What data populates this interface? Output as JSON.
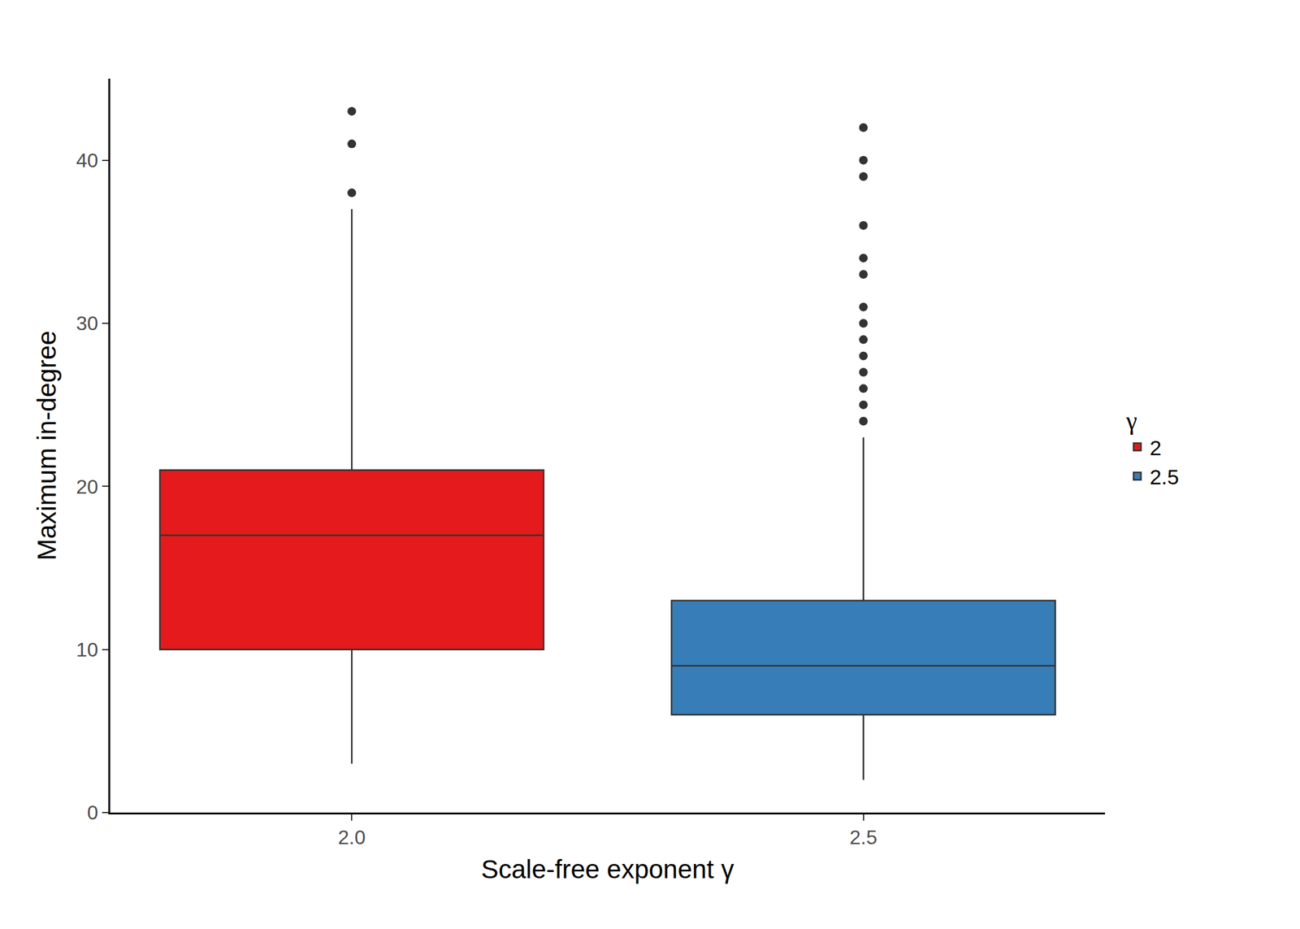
{
  "chart_data": {
    "type": "box",
    "x_label": "Scale-free exponent γ",
    "y_label": "Maximum in-degree",
    "legend_title": "γ",
    "categories": [
      "2.0",
      "2.5"
    ],
    "series": [
      {
        "name": "2",
        "color": "#e41a1c",
        "category": "2.0",
        "lower_whisker": 3,
        "q1": 10,
        "median": 17,
        "q3": 21,
        "upper_whisker": 37,
        "outliers": [
          38,
          41,
          43
        ]
      },
      {
        "name": "2.5",
        "color": "#377eb8",
        "category": "2.5",
        "lower_whisker": 2,
        "q1": 6,
        "median": 9,
        "q3": 13,
        "upper_whisker": 23,
        "outliers": [
          24,
          25,
          26,
          27,
          28,
          29,
          30,
          31,
          33,
          34,
          36,
          39,
          40,
          42
        ]
      }
    ],
    "ylim": [
      0,
      45
    ],
    "yticks": [
      0,
      10,
      20,
      30,
      40
    ],
    "legend": "right",
    "grid": false
  }
}
